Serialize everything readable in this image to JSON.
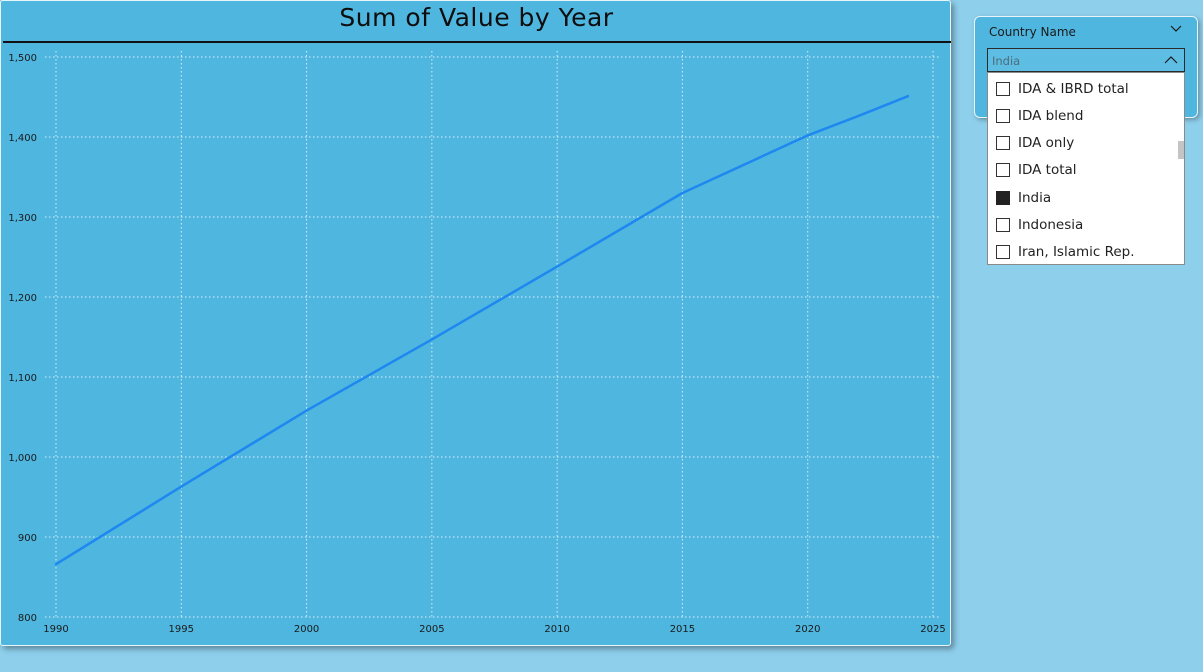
{
  "visual": {
    "title": "Sum of Value by Year"
  },
  "chart_data": {
    "type": "line",
    "title": "Sum of Value by Year",
    "xlabel": "",
    "ylabel": "",
    "xlim": [
      1990,
      2025
    ],
    "ylim": [
      800,
      1500
    ],
    "x_ticks": [
      "1990",
      "1995",
      "2000",
      "2005",
      "2010",
      "2015",
      "2020",
      "2025"
    ],
    "y_ticks": [
      "800",
      "900",
      "1,000",
      "1,100",
      "1,200",
      "1,300",
      "1,400",
      "1,500"
    ],
    "grid": true,
    "series": [
      {
        "color": "#1e88f0",
        "x": [
          1990,
          1995,
          2000,
          2005,
          2010,
          2015,
          2020,
          2022,
          2024
        ],
        "y": [
          866,
          963,
          1058,
          1147,
          1238,
          1330,
          1402,
          1426,
          1451
        ]
      }
    ]
  },
  "slicer": {
    "header": "Country Name",
    "selected_value": "India",
    "items": [
      {
        "label": "IDA & IBRD total",
        "checked": false
      },
      {
        "label": "IDA blend",
        "checked": false
      },
      {
        "label": "IDA only",
        "checked": false
      },
      {
        "label": "IDA total",
        "checked": false
      },
      {
        "label": "India",
        "checked": true
      },
      {
        "label": "Indonesia",
        "checked": false
      },
      {
        "label": "Iran, Islamic Rep.",
        "checked": false
      }
    ]
  },
  "colors": {
    "canvas_background": "#8ecfec",
    "visual_background": "#4fb6df",
    "line": "#1e88f0"
  }
}
